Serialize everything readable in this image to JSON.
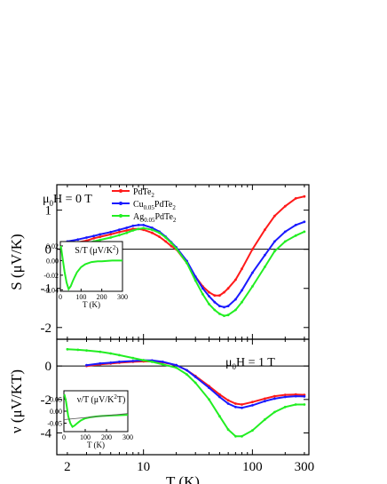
{
  "chart_data": [
    {
      "panel": "top",
      "type": "line",
      "xscale": "log",
      "xlim": [
        1.6,
        330
      ],
      "ylim": [
        -2.3,
        1.65
      ],
      "ylabel_main": "S",
      "ylabel_unit": " (μV/K)",
      "yticks": [
        1,
        0,
        -1,
        -2
      ],
      "field_prefix": "μ",
      "field_sub": "0",
      "field_suffix": "H = 0 T",
      "legend": [
        {
          "pre": "PdTe",
          "sub1": "2",
          "mid": "",
          "sub2": "",
          "post": "",
          "color": "#ff1a1a"
        },
        {
          "pre": "Cu",
          "sub1": "0.05",
          "mid": "PdTe",
          "sub2": "2",
          "post": "",
          "color": "#1a1aff"
        },
        {
          "pre": "Ag",
          "sub1": "0.05",
          "mid": "PdTe",
          "sub2": "2",
          "post": "",
          "color": "#22ee22"
        }
      ],
      "series": [
        {
          "name": "PdTe2",
          "color": "#ff1a1a",
          "x": [
            2,
            2.5,
            3,
            3.5,
            4,
            5,
            6,
            7,
            8,
            9,
            10,
            12,
            14,
            16,
            18,
            20,
            25,
            30,
            35,
            40,
            45,
            50,
            55,
            60,
            70,
            80,
            100,
            130,
            160,
            200,
            250,
            300
          ],
          "y": [
            0.12,
            0.18,
            0.22,
            0.28,
            0.32,
            0.38,
            0.44,
            0.48,
            0.52,
            0.52,
            0.5,
            0.42,
            0.32,
            0.2,
            0.08,
            0.0,
            -0.35,
            -0.7,
            -0.95,
            -1.1,
            -1.18,
            -1.18,
            -1.1,
            -1.0,
            -0.78,
            -0.5,
            0.0,
            0.5,
            0.85,
            1.1,
            1.3,
            1.35
          ]
        },
        {
          "name": "Cu0.05PdTe2",
          "color": "#1a1aff",
          "x": [
            2,
            2.5,
            3,
            3.5,
            4,
            5,
            6,
            7,
            8,
            9,
            10,
            12,
            14,
            16,
            18,
            20,
            25,
            30,
            35,
            40,
            45,
            50,
            55,
            60,
            70,
            80,
            100,
            130,
            160,
            200,
            250,
            300
          ],
          "y": [
            0.2,
            0.25,
            0.3,
            0.34,
            0.38,
            0.44,
            0.5,
            0.55,
            0.6,
            0.62,
            0.62,
            0.55,
            0.45,
            0.32,
            0.18,
            0.05,
            -0.3,
            -0.7,
            -1.0,
            -1.2,
            -1.35,
            -1.45,
            -1.48,
            -1.45,
            -1.28,
            -1.05,
            -0.6,
            -0.15,
            0.2,
            0.45,
            0.62,
            0.7
          ]
        },
        {
          "name": "Ag0.05PdTe2",
          "color": "#22ee22",
          "x": [
            2,
            2.5,
            3,
            3.5,
            4,
            5,
            6,
            7,
            8,
            9,
            10,
            12,
            14,
            16,
            18,
            20,
            25,
            30,
            35,
            40,
            45,
            50,
            55,
            60,
            70,
            80,
            100,
            130,
            160,
            200,
            250,
            300
          ],
          "y": [
            0.08,
            0.12,
            0.16,
            0.2,
            0.24,
            0.3,
            0.36,
            0.42,
            0.48,
            0.52,
            0.54,
            0.5,
            0.42,
            0.3,
            0.16,
            0.02,
            -0.35,
            -0.8,
            -1.15,
            -1.4,
            -1.55,
            -1.65,
            -1.7,
            -1.68,
            -1.55,
            -1.35,
            -0.95,
            -0.45,
            -0.05,
            0.2,
            0.35,
            0.45
          ]
        }
      ],
      "inset": {
        "label_pre": "S/T (μV/K",
        "label_sup": "2",
        "label_post": ")",
        "xlabel": "T (K)",
        "xlim": [
          0,
          300
        ],
        "ylim": [
          -0.042,
          0.026
        ],
        "xticks": [
          0,
          100,
          200,
          300
        ],
        "yticks": [
          0.02,
          0.0,
          -0.02,
          -0.04
        ],
        "ytick_labels": [
          "0.02",
          "0.00",
          "-0.02",
          "-0.04"
        ],
        "series": [
          {
            "name": "Ag0.05PdTe2",
            "color": "#22ee22",
            "x": [
              2,
              5,
              10,
              20,
              30,
              40,
              50,
              60,
              70,
              80,
              100,
              120,
              150,
              180,
              200,
              250,
              300
            ],
            "y": [
              0.02,
              0.015,
              0.005,
              -0.015,
              -0.03,
              -0.039,
              -0.035,
              -0.028,
              -0.022,
              -0.016,
              -0.009,
              -0.005,
              -0.002,
              -0.001,
              -0.001,
              0.0,
              0.0
            ]
          }
        ]
      }
    },
    {
      "panel": "bottom",
      "type": "line",
      "xscale": "log",
      "xlim": [
        1.6,
        330
      ],
      "ylim": [
        -5.3,
        1.6
      ],
      "xlabel": "T (K)",
      "ylabel_main": "ν",
      "ylabel_unit": " (μV/KT)",
      "yticks": [
        0,
        -2,
        -4
      ],
      "xticks": [
        2,
        5,
        10,
        20,
        50,
        100,
        300
      ],
      "xtick_labels": [
        "2",
        "",
        "10",
        "",
        "",
        "100",
        "300"
      ],
      "field_prefix": "μ",
      "field_sub": "0",
      "field_suffix": "H = 1 T",
      "series": [
        {
          "name": "PdTe2",
          "color": "#ff1a1a",
          "x": [
            3,
            4,
            5,
            6,
            8,
            10,
            12,
            15,
            20,
            25,
            30,
            40,
            50,
            60,
            70,
            80,
            100,
            130,
            160,
            200,
            250,
            300
          ],
          "y": [
            0.0,
            0.1,
            0.15,
            0.2,
            0.25,
            0.28,
            0.27,
            0.22,
            0.05,
            -0.25,
            -0.6,
            -1.2,
            -1.7,
            -2.05,
            -2.25,
            -2.3,
            -2.15,
            -1.95,
            -1.8,
            -1.72,
            -1.7,
            -1.72
          ]
        },
        {
          "name": "Cu0.05PdTe2",
          "color": "#1a1aff",
          "x": [
            3,
            4,
            5,
            6,
            8,
            10,
            12,
            15,
            20,
            25,
            30,
            40,
            50,
            60,
            70,
            80,
            100,
            130,
            160,
            200,
            250,
            300
          ],
          "y": [
            0.05,
            0.15,
            0.2,
            0.25,
            0.3,
            0.35,
            0.33,
            0.25,
            0.05,
            -0.25,
            -0.65,
            -1.3,
            -1.85,
            -2.25,
            -2.45,
            -2.5,
            -2.35,
            -2.1,
            -1.95,
            -1.85,
            -1.8,
            -1.82
          ]
        },
        {
          "name": "Ag0.05PdTe2",
          "color": "#22ee22",
          "x": [
            2,
            2.5,
            3,
            4,
            5,
            6,
            8,
            10,
            12,
            15,
            20,
            25,
            30,
            40,
            50,
            60,
            70,
            80,
            100,
            130,
            160,
            200,
            250,
            300
          ],
          "y": [
            1.0,
            0.97,
            0.93,
            0.85,
            0.75,
            0.65,
            0.48,
            0.35,
            0.25,
            0.1,
            -0.1,
            -0.5,
            -1.0,
            -2.0,
            -3.0,
            -3.8,
            -4.2,
            -4.2,
            -3.85,
            -3.2,
            -2.75,
            -2.45,
            -2.3,
            -2.3
          ]
        }
      ],
      "inset": {
        "label_pre": "ν/T (μV/K",
        "label_sup": "2",
        "label_post": "T)",
        "xlabel": "T (K)",
        "xlim": [
          0,
          300
        ],
        "ylim": [
          -0.085,
          0.085
        ],
        "xticks": [
          0,
          100,
          200,
          300
        ],
        "yticks": [
          0.05,
          0.0,
          -0.05
        ],
        "ytick_labels": [
          "0.05",
          "0.00",
          "-0.05"
        ],
        "series": [
          {
            "name": "Ag0.05PdTe2",
            "color": "#22ee22",
            "x": [
              2,
              5,
              10,
              20,
              30,
              40,
              50,
              60,
              70,
              80,
              100,
              120,
              150,
              180,
              200,
              250,
              300
            ],
            "y": [
              0.07,
              0.06,
              0.04,
              -0.02,
              -0.05,
              -0.065,
              -0.06,
              -0.052,
              -0.045,
              -0.038,
              -0.03,
              -0.026,
              -0.022,
              -0.02,
              -0.019,
              -0.017,
              -0.015
            ]
          },
          {
            "name": "Ag0.05PdTe2-line",
            "color": "#555555",
            "x": [
              0,
              300
            ],
            "y": [
              -0.035,
              -0.01
            ]
          }
        ]
      }
    }
  ]
}
